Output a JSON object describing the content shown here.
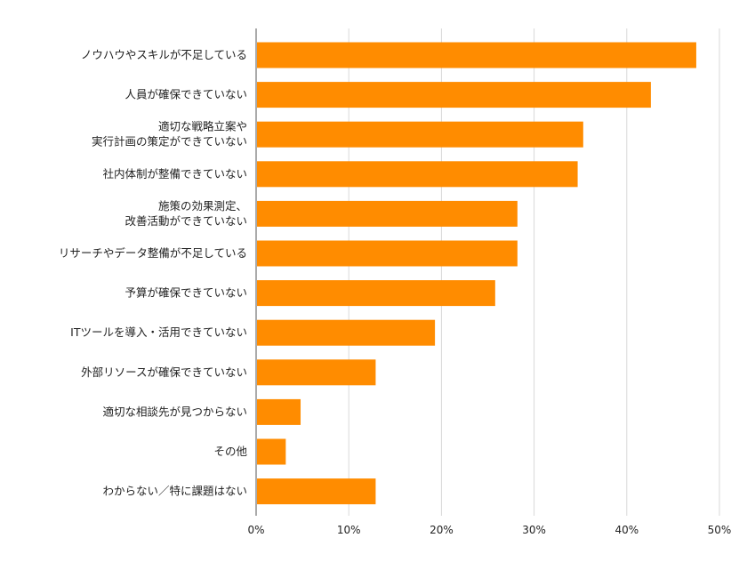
{
  "chart_data": {
    "type": "bar",
    "orientation": "horizontal",
    "categories": [
      "ノウハウやスキルが不足している",
      "人員が確保できていない",
      "適切な戦略立案や\n実行計画の策定ができていない",
      "社内体制が整備できていない",
      "施策の効果測定、\n改善活動ができていない",
      "リサーチやデータ整備が不足している",
      "予算が確保できていない",
      "ITツールを導入・活用できていない",
      "外部リソースが確保できていない",
      "適切な相談先が見つからない",
      "その他",
      "わからない／特に課題はない"
    ],
    "values": [
      47.5,
      42.6,
      35.3,
      34.7,
      28.2,
      28.2,
      25.8,
      19.3,
      12.9,
      4.8,
      3.2,
      12.9
    ],
    "xlim": [
      0,
      50
    ],
    "x_ticks": [
      "0%",
      "10%",
      "20%",
      "30%",
      "40%",
      "50%"
    ],
    "grid": true,
    "bar_color": "#ff8c00",
    "title": "",
    "xlabel": "",
    "ylabel": ""
  }
}
